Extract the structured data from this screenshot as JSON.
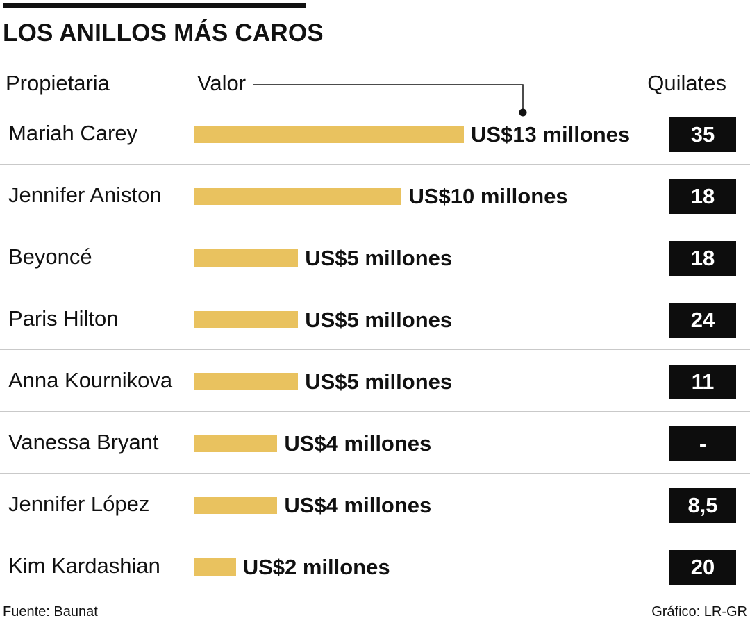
{
  "title": "LOS ANILLOS MÁS CAROS",
  "headers": {
    "owner": "Propietaria",
    "value": "Valor",
    "carats": "Quilates"
  },
  "chart_data": {
    "type": "bar",
    "orientation": "horizontal",
    "unit": "US$ millones",
    "categories": [
      "Mariah Carey",
      "Jennifer Aniston",
      "Beyoncé",
      "Paris Hilton",
      "Anna Kournikova",
      "Vanessa Bryant",
      "Jennifer López",
      "Kim Kardashian"
    ],
    "values": [
      13,
      10,
      5,
      5,
      5,
      4,
      4,
      2
    ],
    "value_labels": [
      "US$13 millones",
      "US$10 millones",
      "US$5 millones",
      "US$5 millones",
      "US$5 millones",
      "US$4 millones",
      "US$4 millones",
      "US$2 millones"
    ],
    "carats": [
      "35",
      "18",
      "18",
      "24",
      "11",
      "-",
      "8,5",
      "20"
    ],
    "bar_color": "#e9c25f",
    "carat_box_color": "#0d0d0d"
  },
  "footer": {
    "source": "Fuente: Baunat",
    "credit": "Gráfico: LR-GR"
  }
}
